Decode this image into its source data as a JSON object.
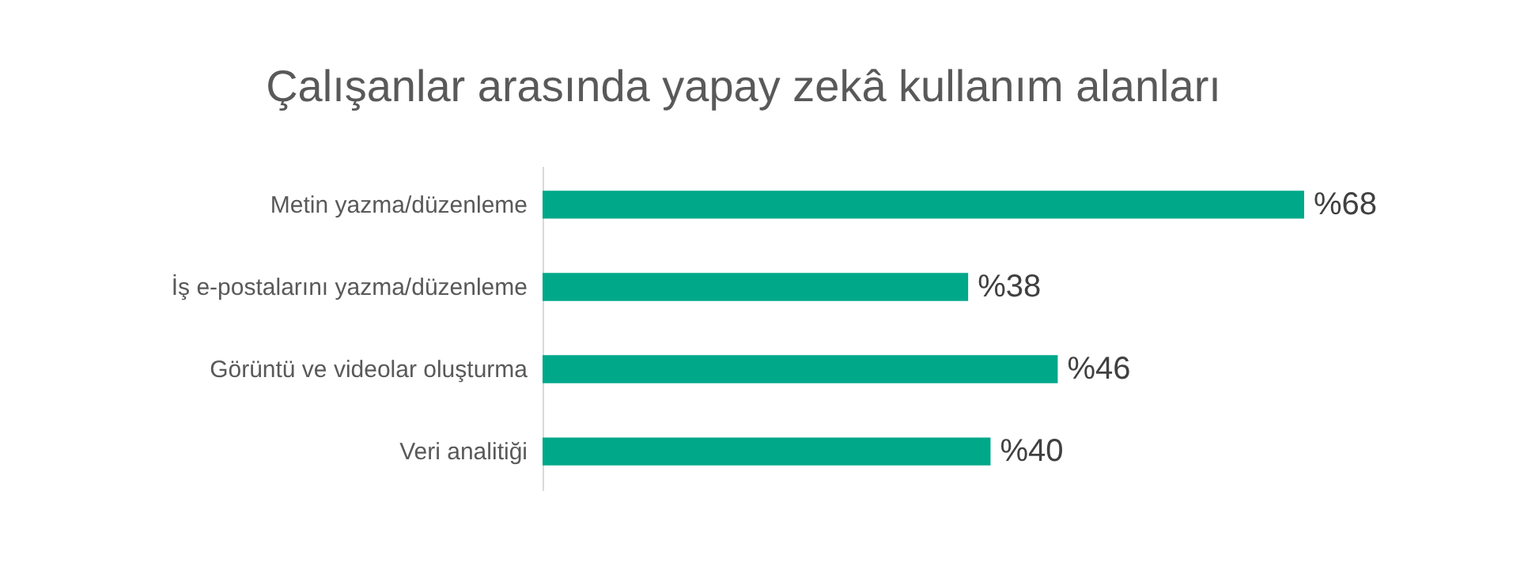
{
  "chart_data": {
    "type": "bar",
    "orientation": "horizontal",
    "title": "Çalışanlar arasında yapay zekâ kullanım alanları",
    "categories": [
      "Metin yazma/düzenleme",
      "İş e-postalarını yazma/düzenleme",
      "Görüntü ve videolar oluşturma",
      "Veri analitiği"
    ],
    "values": [
      68,
      38,
      46,
      40
    ],
    "value_labels": [
      "%68",
      "%38",
      "%46",
      "%40"
    ],
    "color": "#00a88a"
  }
}
